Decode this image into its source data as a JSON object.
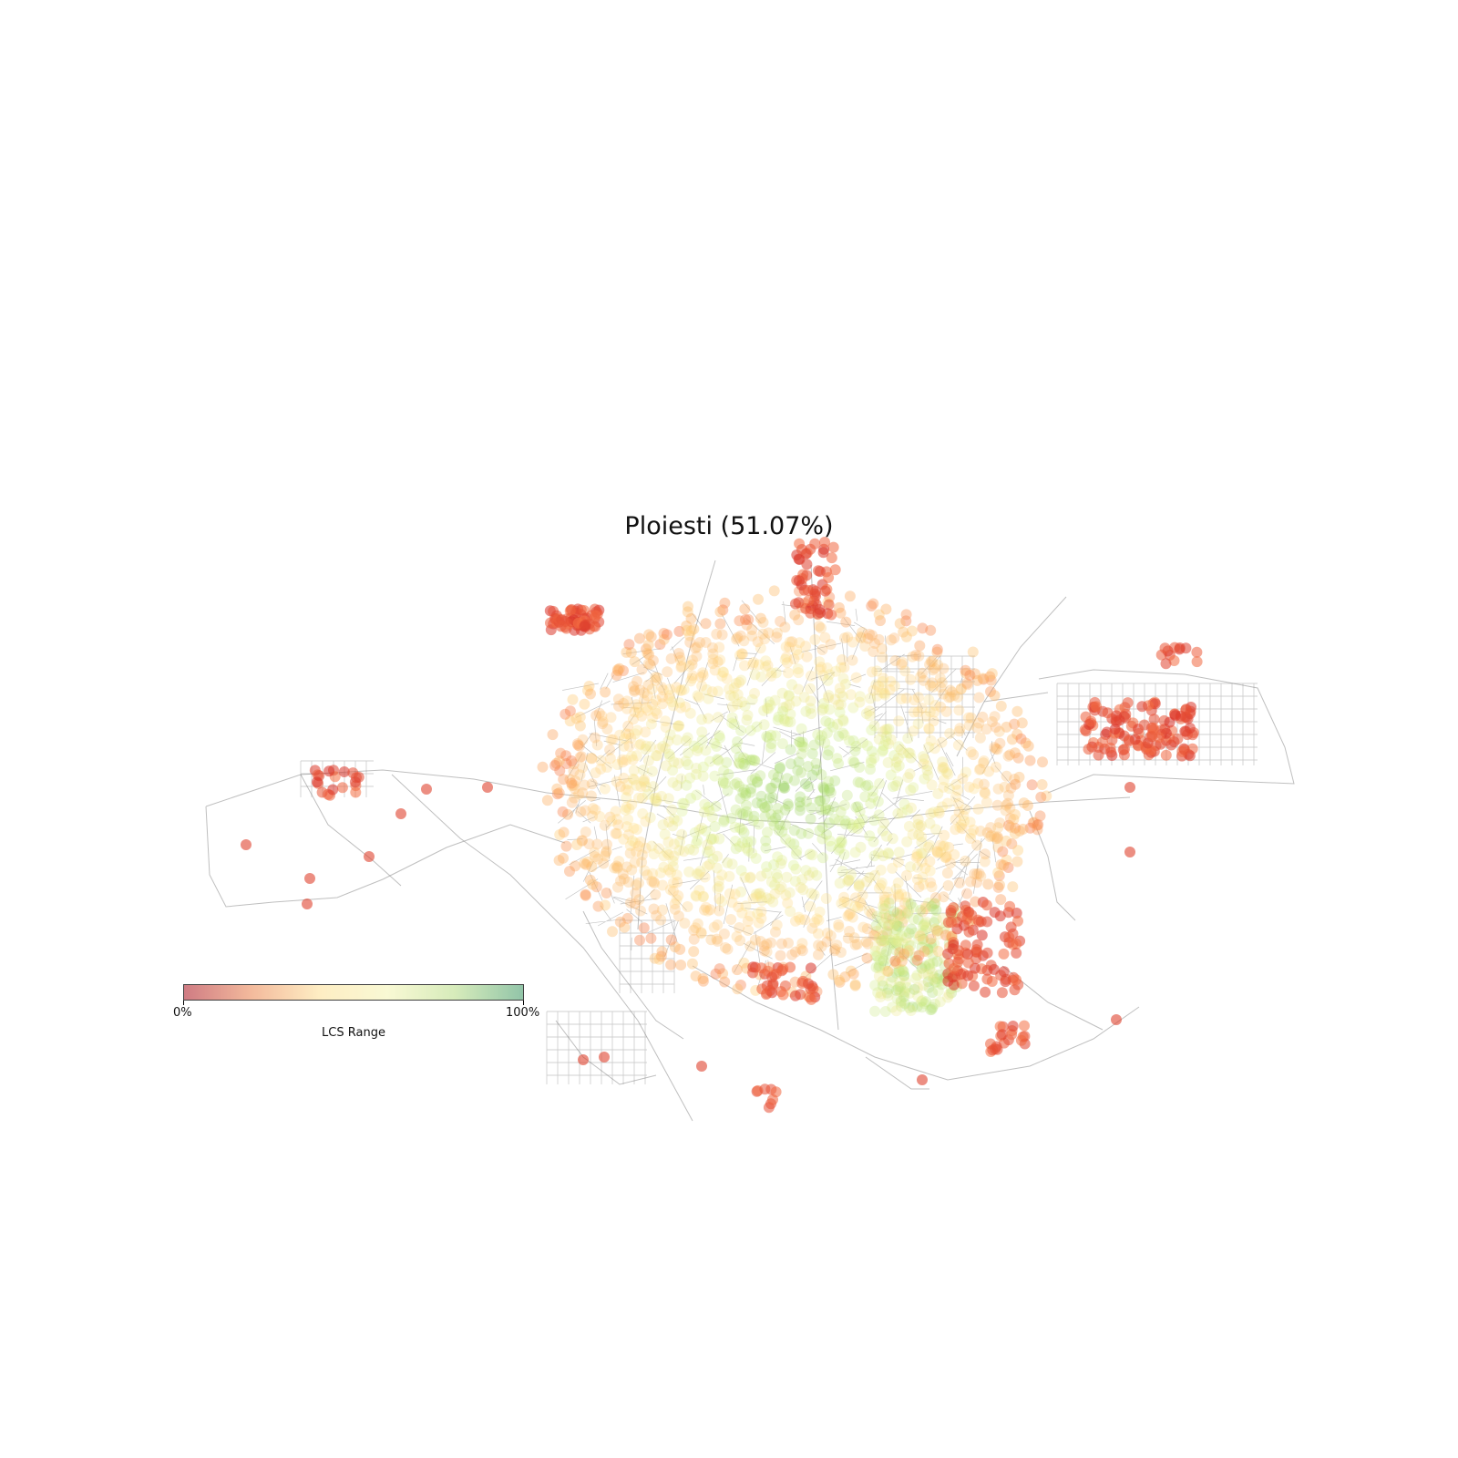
{
  "title": "Ploiesti (51.07%)",
  "colorbar": {
    "min_label": "0%",
    "max_label": "100%",
    "label": "LCS Range",
    "stops": [
      "#c0505a",
      "#f0a47c",
      "#fee8b0",
      "#f7f7c6",
      "#c9e5a4",
      "#6eb28c"
    ],
    "alpha": 0.75
  },
  "colors": {
    "road": "#8a8a8a",
    "low": "#d7191c",
    "mid_low": "#f46d43",
    "mid": "#fdbf6f",
    "high": "#d9ef8b",
    "top": "#8cc152"
  }
}
